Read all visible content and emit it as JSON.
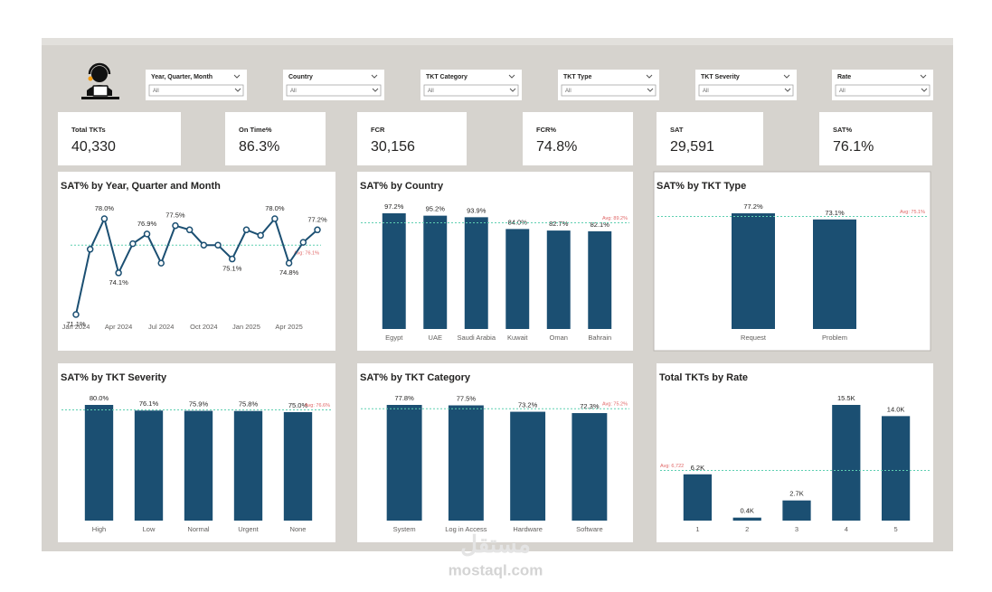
{
  "header": {
    "filters": [
      {
        "label": "Year, Quarter, Month",
        "value": "All"
      },
      {
        "label": "Country",
        "value": "All"
      },
      {
        "label": "TKT Category",
        "value": "All"
      },
      {
        "label": "TKT Type",
        "value": "All"
      },
      {
        "label": "TKT Severity",
        "value": "All"
      },
      {
        "label": "Rate",
        "value": "All"
      }
    ]
  },
  "kpis": [
    {
      "label": "Total TKTs",
      "value": "40,330"
    },
    {
      "label": "On Time%",
      "value": "86.3%"
    },
    {
      "label": "FCR",
      "value": "30,156"
    },
    {
      "label": "FCR%",
      "value": "74.8%"
    },
    {
      "label": "SAT",
      "value": "29,591"
    },
    {
      "label": "SAT%",
      "value": "76.1%"
    }
  ],
  "chart_data": [
    {
      "type": "line",
      "title": "SAT% by Year, Quarter and Month",
      "categories": [
        "Jan 2024",
        null,
        null,
        "Apr 2024",
        null,
        null,
        "Jul 2024",
        null,
        null,
        "Oct 2024",
        null,
        null,
        "Jan 2025",
        null,
        null,
        "Apr 2025",
        null,
        null
      ],
      "values": [
        71.1,
        75.8,
        78.0,
        74.1,
        76.2,
        76.9,
        74.8,
        77.5,
        77.2,
        76.1,
        76.1,
        75.1,
        77.2,
        76.8,
        78.0,
        74.8,
        76.3,
        77.2
      ],
      "value_labels": [
        "71.1%",
        null,
        "78.0%",
        "74.1%",
        null,
        "76.9%",
        null,
        "77.5%",
        null,
        null,
        null,
        "75.1%",
        null,
        null,
        "78.0%",
        "74.8%",
        null,
        "77.2%"
      ],
      "avg": {
        "value": 76.1,
        "label": "Avg: 76.1%"
      },
      "color": "#1b4f72",
      "avg_color": "#5ecfb1",
      "avg_label_color": "#e06666"
    },
    {
      "type": "bar",
      "title": "SAT% by Country",
      "categories": [
        "Egypt",
        "UAE",
        "Saudi Arabia",
        "Kuwait",
        "Oman",
        "Bahrain"
      ],
      "values": [
        97.2,
        95.2,
        93.9,
        84.0,
        82.7,
        82.1
      ],
      "value_labels": [
        "97.2%",
        "95.2%",
        "93.9%",
        "84.0%",
        "82.7%",
        "82.1%"
      ],
      "avg": {
        "value": 89.2,
        "label": "Avg: 89.2%"
      },
      "color": "#1b4f72",
      "avg_color": "#5ecfb1",
      "avg_label_color": "#e06666"
    },
    {
      "type": "bar",
      "title": "SAT% by TKT Type",
      "categories": [
        "Request",
        "Problem"
      ],
      "values": [
        77.2,
        73.1
      ],
      "value_labels": [
        "77.2%",
        "73.1%"
      ],
      "avg": {
        "value": 75.1,
        "label": "Avg: 75.1%"
      },
      "color": "#1b4f72",
      "avg_color": "#5ecfb1",
      "avg_label_color": "#e06666"
    },
    {
      "type": "bar",
      "title": "SAT% by TKT Severity",
      "categories": [
        "High",
        "Low",
        "Normal",
        "Urgent",
        "None"
      ],
      "values": [
        80.0,
        76.1,
        75.9,
        75.8,
        75.0
      ],
      "value_labels": [
        "80.0%",
        "76.1%",
        "75.9%",
        "75.8%",
        "75.0%"
      ],
      "avg": {
        "value": 76.6,
        "label": "Avg: 76.6%"
      },
      "color": "#1b4f72",
      "avg_color": "#5ecfb1",
      "avg_label_color": "#e06666"
    },
    {
      "type": "bar",
      "title": "SAT% by TKT Category",
      "categories": [
        "System",
        "Log in Access",
        "Hardware",
        "Software"
      ],
      "values": [
        77.8,
        77.5,
        73.2,
        72.3
      ],
      "value_labels": [
        "77.8%",
        "77.5%",
        "73.2%",
        "72.3%"
      ],
      "avg": {
        "value": 75.2,
        "label": "Avg: 75.2%"
      },
      "color": "#1b4f72",
      "avg_color": "#5ecfb1",
      "avg_label_color": "#e06666"
    },
    {
      "type": "bar",
      "title": "Total TKTs by Rate",
      "categories": [
        "1",
        "2",
        "3",
        "4",
        "5"
      ],
      "values": [
        6200,
        400,
        2700,
        15500,
        14000
      ],
      "value_labels": [
        "6.2K",
        "0.4K",
        "2.7K",
        "15.5K",
        "14.0K"
      ],
      "avg": {
        "value": 6722,
        "label": "Avg: 6,722"
      },
      "color": "#1b4f72",
      "avg_color": "#5ecfb1",
      "avg_label_color": "#e06666"
    }
  ],
  "watermark": {
    "logo": "مستقل",
    "site": "mostaql.com"
  }
}
